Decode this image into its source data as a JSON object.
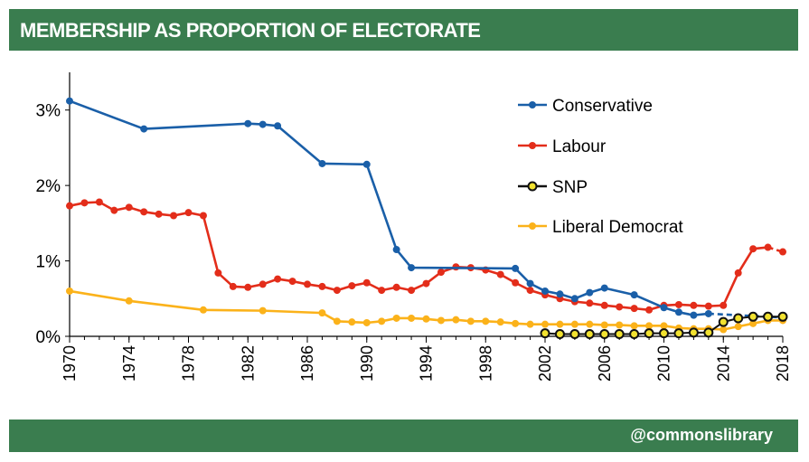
{
  "header": {
    "title": "MEMBERSHIP AS PROPORTION OF ELECTORATE"
  },
  "footer": {
    "handle": "@commonslibrary"
  },
  "chart_data": {
    "type": "line",
    "title": "MEMBERSHIP AS PROPORTION OF ELECTORATE",
    "xlabel": "",
    "ylabel": "",
    "xlim": [
      1970,
      2018
    ],
    "ylim": [
      0,
      3.5
    ],
    "y_ticks": [
      0,
      1,
      2,
      3
    ],
    "y_tick_labels": [
      "0%",
      "1%",
      "2%",
      "3%"
    ],
    "x_ticks": [
      1970,
      1974,
      1978,
      1982,
      1986,
      1990,
      1994,
      1998,
      2002,
      2006,
      2010,
      2014,
      2018
    ],
    "x_tick_labels": [
      "1970",
      "1974",
      "1978",
      "1982",
      "1986",
      "1990",
      "1994",
      "1998",
      "2002",
      "2006",
      "2010",
      "2014",
      "2018"
    ],
    "legend_position": "top-right",
    "grid": false,
    "series": [
      {
        "name": "Conservative",
        "color": "#1a5fa8",
        "marker": "filled",
        "points": [
          [
            1970,
            3.12
          ],
          [
            1975,
            2.75
          ],
          [
            1982,
            2.82
          ],
          [
            1983,
            2.81
          ],
          [
            1984,
            2.79
          ],
          [
            1987,
            2.29
          ],
          [
            1990,
            2.28
          ],
          [
            1992,
            1.15
          ],
          [
            1993,
            0.91
          ],
          [
            2000,
            0.9
          ],
          [
            2001,
            0.7
          ],
          [
            2002,
            0.6
          ],
          [
            2003,
            0.56
          ],
          [
            2004,
            0.5
          ],
          [
            2005,
            0.58
          ],
          [
            2006,
            0.64
          ],
          [
            2008,
            0.55
          ],
          [
            2010,
            0.38
          ],
          [
            2011,
            0.32
          ],
          [
            2012,
            0.28
          ],
          [
            2013,
            0.3
          ]
        ],
        "dashed_tail": [
          [
            2013,
            0.3
          ],
          [
            2018,
            0.25
          ]
        ]
      },
      {
        "name": "Labour",
        "color": "#e32d1a",
        "marker": "filled",
        "points": [
          [
            1970,
            1.73
          ],
          [
            1971,
            1.77
          ],
          [
            1972,
            1.78
          ],
          [
            1973,
            1.67
          ],
          [
            1974,
            1.71
          ],
          [
            1975,
            1.65
          ],
          [
            1976,
            1.62
          ],
          [
            1977,
            1.6
          ],
          [
            1978,
            1.64
          ],
          [
            1979,
            1.6
          ],
          [
            1980,
            0.84
          ],
          [
            1981,
            0.66
          ],
          [
            1982,
            0.65
          ],
          [
            1983,
            0.69
          ],
          [
            1984,
            0.76
          ],
          [
            1985,
            0.73
          ],
          [
            1986,
            0.69
          ],
          [
            1987,
            0.66
          ],
          [
            1988,
            0.61
          ],
          [
            1989,
            0.67
          ],
          [
            1990,
            0.71
          ],
          [
            1991,
            0.61
          ],
          [
            1992,
            0.65
          ],
          [
            1993,
            0.61
          ],
          [
            1994,
            0.7
          ],
          [
            1995,
            0.85
          ],
          [
            1996,
            0.92
          ],
          [
            1997,
            0.91
          ],
          [
            1998,
            0.88
          ],
          [
            1999,
            0.82
          ],
          [
            2000,
            0.71
          ],
          [
            2001,
            0.61
          ],
          [
            2002,
            0.55
          ],
          [
            2003,
            0.5
          ],
          [
            2004,
            0.46
          ],
          [
            2005,
            0.44
          ],
          [
            2006,
            0.41
          ],
          [
            2007,
            0.39
          ],
          [
            2008,
            0.37
          ],
          [
            2009,
            0.35
          ],
          [
            2010,
            0.41
          ],
          [
            2011,
            0.42
          ],
          [
            2012,
            0.41
          ],
          [
            2013,
            0.4
          ],
          [
            2014,
            0.41
          ],
          [
            2015,
            0.84
          ],
          [
            2016,
            1.16
          ],
          [
            2017,
            1.18
          ]
        ],
        "dashed_tail": [
          [
            2017,
            1.18
          ],
          [
            2018,
            1.12
          ]
        ]
      },
      {
        "name": "SNP",
        "color": "#111111",
        "fill": "#f2e230",
        "marker": "hollow",
        "points": [
          [
            2002,
            0.04
          ],
          [
            2003,
            0.03
          ],
          [
            2004,
            0.03
          ],
          [
            2005,
            0.03
          ],
          [
            2006,
            0.03
          ],
          [
            2007,
            0.03
          ],
          [
            2008,
            0.03
          ],
          [
            2009,
            0.04
          ],
          [
            2010,
            0.04
          ],
          [
            2011,
            0.04
          ],
          [
            2012,
            0.05
          ],
          [
            2013,
            0.05
          ],
          [
            2014,
            0.19
          ],
          [
            2015,
            0.24
          ],
          [
            2016,
            0.26
          ],
          [
            2017,
            0.26
          ],
          [
            2018,
            0.26
          ]
        ]
      },
      {
        "name": "Liberal Democrat",
        "color": "#fbb21a",
        "marker": "filled",
        "points": [
          [
            1970,
            0.6
          ],
          [
            1974,
            0.47
          ],
          [
            1979,
            0.35
          ],
          [
            1983,
            0.34
          ],
          [
            1987,
            0.31
          ],
          [
            1988,
            0.2
          ],
          [
            1989,
            0.19
          ],
          [
            1990,
            0.18
          ],
          [
            1991,
            0.2
          ],
          [
            1992,
            0.24
          ],
          [
            1993,
            0.24
          ],
          [
            1994,
            0.23
          ],
          [
            1995,
            0.21
          ],
          [
            1996,
            0.22
          ],
          [
            1997,
            0.2
          ],
          [
            1998,
            0.2
          ],
          [
            1999,
            0.19
          ],
          [
            2000,
            0.17
          ],
          [
            2001,
            0.16
          ],
          [
            2002,
            0.16
          ],
          [
            2003,
            0.16
          ],
          [
            2004,
            0.16
          ],
          [
            2005,
            0.16
          ],
          [
            2006,
            0.15
          ],
          [
            2007,
            0.15
          ],
          [
            2008,
            0.14
          ],
          [
            2009,
            0.14
          ],
          [
            2010,
            0.14
          ],
          [
            2011,
            0.11
          ],
          [
            2012,
            0.1
          ],
          [
            2013,
            0.1
          ],
          [
            2014,
            0.09
          ],
          [
            2015,
            0.13
          ],
          [
            2016,
            0.17
          ],
          [
            2017,
            0.21
          ],
          [
            2018,
            0.21
          ]
        ]
      }
    ]
  }
}
